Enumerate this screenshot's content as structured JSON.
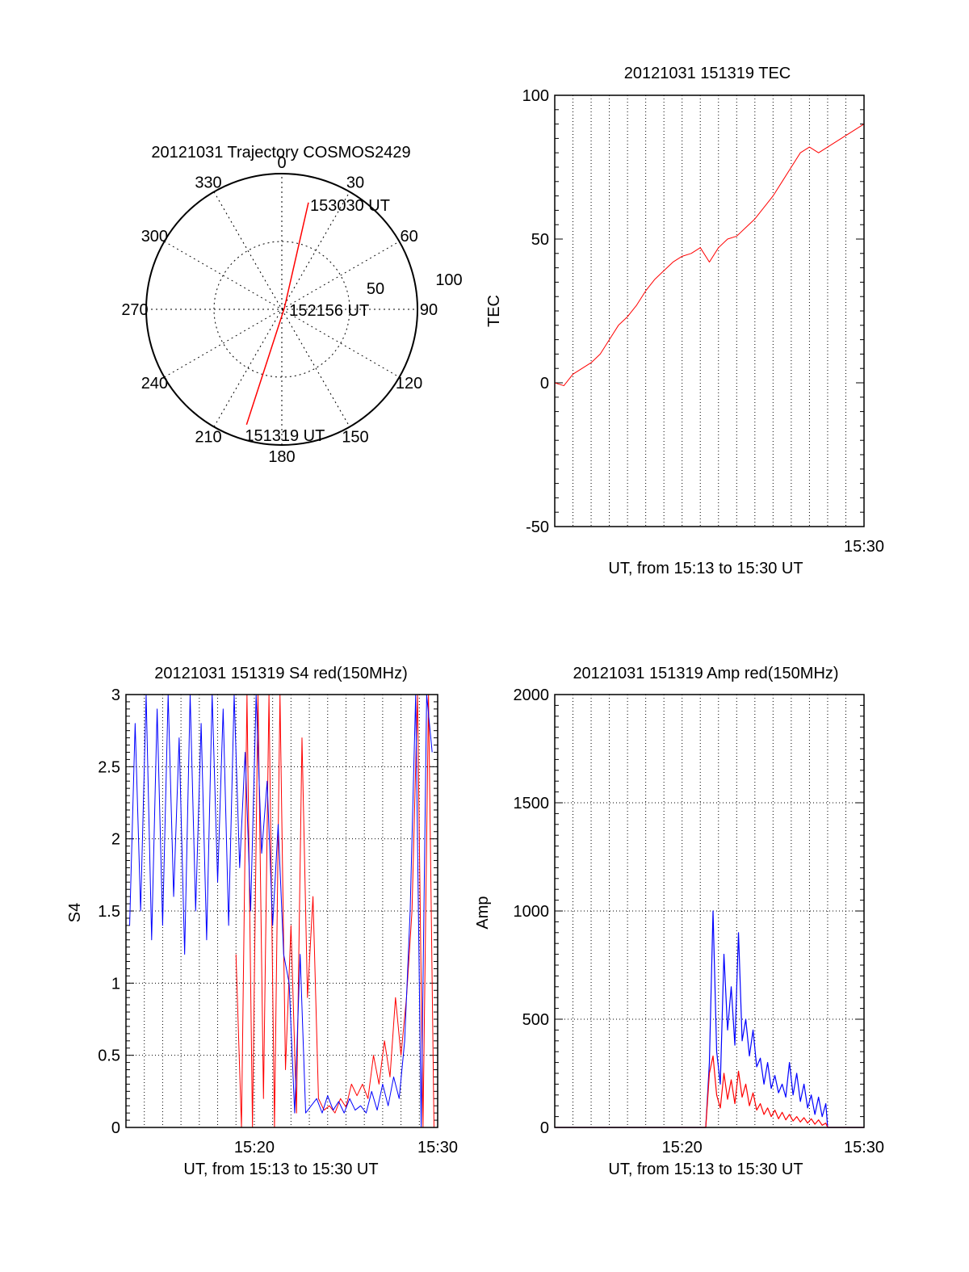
{
  "chart_data": [
    {
      "type": "polar-trajectory",
      "title": "20121031 Trajectory COSMOS2429",
      "azimuth_labels": [
        "0",
        "30",
        "60",
        "90",
        "120",
        "150",
        "180",
        "210",
        "240",
        "270",
        "300",
        "330"
      ],
      "radial_labels": [
        "50",
        "100"
      ],
      "track": {
        "color": "#ff0000",
        "points": [
          {
            "az": 197,
            "el": 10
          },
          {
            "az": 60,
            "el": 88
          },
          {
            "az": 14,
            "el": 17
          }
        ]
      },
      "annotations": [
        {
          "text": "153030 UT",
          "az": 14,
          "el": 17
        },
        {
          "text": "152156 UT",
          "az": 60,
          "el": 88
        },
        {
          "text": "151319 UT",
          "az": 197,
          "el": 10
        }
      ]
    },
    {
      "type": "line",
      "title": "20121031 151319 TEC",
      "xlabel": "UT, from 15:13 to 15:30 UT",
      "ylabel": "TEC",
      "xlim": [
        0,
        17
      ],
      "ylim": [
        -50,
        100
      ],
      "ytick_labels": [
        "-50",
        "0",
        "50",
        "100"
      ],
      "xtick_labels": [
        {
          "x": 17,
          "label": "15:30"
        }
      ],
      "grid": "vertical-dotted",
      "series": [
        {
          "color": "#ff0000",
          "x": [
            0,
            0.5,
            1,
            1.5,
            2,
            2.5,
            3,
            3.5,
            4,
            4.5,
            5,
            5.5,
            6,
            6.5,
            7,
            7.5,
            8,
            8.5,
            9,
            9.5,
            10,
            10.5,
            11,
            11.5,
            12,
            12.5,
            13,
            13.5,
            14,
            14.5,
            15,
            15.5,
            16,
            16.5,
            17
          ],
          "values": [
            0,
            -1,
            3,
            5,
            7,
            10,
            15,
            20,
            23,
            27,
            32,
            36,
            39,
            42,
            44,
            45,
            47,
            42,
            47,
            50,
            51,
            54,
            57,
            61,
            65,
            70,
            75,
            80,
            82,
            80,
            82,
            84,
            86,
            88,
            90
          ]
        }
      ]
    },
    {
      "type": "line",
      "title": "20121031 151319 S4 red(150MHz)",
      "xlabel": "UT, from 15:13 to 15:30 UT",
      "ylabel": "S4",
      "xlim": [
        0,
        17
      ],
      "ylim": [
        0,
        3
      ],
      "ytick_labels": [
        "0",
        "0.5",
        "1",
        "1.5",
        "2",
        "2.5",
        "3"
      ],
      "xtick_labels": [
        {
          "x": 7,
          "label": "15:20"
        },
        {
          "x": 17,
          "label": "15:30"
        }
      ],
      "grid": "dotted",
      "series": [
        {
          "color": "#ff0000",
          "x": [
            6.0,
            6.3,
            6.6,
            6.9,
            7.2,
            7.5,
            7.8,
            8.1,
            8.4,
            8.7,
            9.0,
            9.3,
            9.6,
            9.9,
            10.2,
            10.5,
            10.8,
            11.1,
            11.4,
            11.7,
            12.0,
            12.3,
            12.6,
            12.9,
            13.2,
            13.5,
            13.8,
            14.1,
            14.4,
            14.7,
            15.0,
            15.3,
            15.6,
            15.9,
            16.2,
            16.5,
            16.8
          ],
          "values": [
            1.2,
            0.0,
            3.0,
            0.0,
            3.0,
            0.2,
            3.0,
            0.0,
            3.0,
            0.4,
            1.4,
            0.1,
            2.7,
            0.9,
            1.6,
            0.2,
            0.12,
            0.15,
            0.1,
            0.2,
            0.14,
            0.3,
            0.22,
            0.3,
            0.2,
            0.5,
            0.3,
            0.6,
            0.35,
            0.9,
            0.5,
            0.9,
            1.5,
            3.0,
            0.0,
            3.0,
            0.0
          ]
        },
        {
          "color": "#0000ff",
          "x": [
            0.2,
            0.5,
            0.8,
            1.1,
            1.4,
            1.7,
            2.0,
            2.3,
            2.6,
            2.9,
            3.2,
            3.5,
            3.8,
            4.1,
            4.4,
            4.7,
            5.0,
            5.3,
            5.6,
            5.9,
            6.2,
            6.5,
            6.8,
            7.1,
            7.4,
            7.7,
            8.0,
            8.3,
            8.6,
            8.9,
            9.2,
            9.5,
            9.8,
            10.1,
            10.4,
            10.7,
            11.0,
            11.3,
            11.6,
            11.9,
            12.2,
            12.5,
            12.8,
            13.1,
            13.4,
            13.7,
            14.0,
            14.3,
            14.6,
            14.9,
            15.2,
            15.5,
            15.8,
            16.1,
            16.4,
            16.7
          ],
          "values": [
            1.4,
            2.8,
            1.5,
            3.0,
            1.3,
            2.9,
            1.4,
            3.0,
            1.6,
            2.7,
            1.2,
            3.0,
            1.5,
            2.8,
            1.3,
            3.0,
            1.7,
            2.9,
            1.4,
            3.0,
            1.8,
            2.6,
            1.5,
            3.0,
            1.9,
            2.4,
            1.4,
            2.1,
            1.2,
            1.0,
            0.1,
            1.2,
            0.1,
            0.15,
            0.2,
            0.1,
            0.22,
            0.12,
            0.18,
            0.1,
            0.2,
            0.12,
            0.15,
            0.1,
            0.25,
            0.12,
            0.3,
            0.15,
            0.35,
            0.2,
            0.6,
            1.5,
            3.0,
            0.0,
            3.0,
            2.6
          ]
        }
      ]
    },
    {
      "type": "line",
      "title": "20121031 151319 Amp red(150MHz)",
      "xlabel": "UT, from 15:13 to 15:30 UT",
      "ylabel": "Amp",
      "xlim": [
        0,
        17
      ],
      "ylim": [
        0,
        2000
      ],
      "ytick_labels": [
        "0",
        "500",
        "1000",
        "1500",
        "2000"
      ],
      "xtick_labels": [
        {
          "x": 7,
          "label": "15:20"
        },
        {
          "x": 17,
          "label": "15:30"
        }
      ],
      "grid": "dotted",
      "series": [
        {
          "color": "#0000ff",
          "x": [
            0,
            8.3,
            8.5,
            8.7,
            8.9,
            9.1,
            9.3,
            9.5,
            9.7,
            9.9,
            10.1,
            10.3,
            10.5,
            10.7,
            10.9,
            11.1,
            11.3,
            11.5,
            11.7,
            11.9,
            12.1,
            12.3,
            12.5,
            12.7,
            12.9,
            13.1,
            13.3,
            13.5,
            13.7,
            13.9,
            14.1,
            14.3,
            14.5,
            14.7,
            14.9,
            15.0,
            17
          ],
          "values": [
            0,
            0,
            300,
            1000,
            350,
            200,
            800,
            450,
            650,
            380,
            900,
            400,
            500,
            330,
            450,
            280,
            320,
            200,
            300,
            180,
            240,
            160,
            200,
            140,
            300,
            150,
            250,
            120,
            200,
            90,
            150,
            60,
            140,
            50,
            110,
            0,
            0
          ]
        },
        {
          "color": "#ff0000",
          "x": [
            0,
            8.3,
            8.5,
            8.7,
            8.9,
            9.1,
            9.3,
            9.5,
            9.7,
            9.9,
            10.1,
            10.3,
            10.5,
            10.7,
            10.9,
            11.1,
            11.3,
            11.5,
            11.7,
            11.9,
            12.1,
            12.3,
            12.5,
            12.7,
            12.9,
            13.1,
            13.3,
            13.5,
            13.7,
            13.9,
            14.1,
            14.3,
            14.5,
            14.7,
            14.9,
            15.0,
            17
          ],
          "values": [
            0,
            0,
            250,
            330,
            150,
            90,
            250,
            130,
            220,
            110,
            260,
            140,
            200,
            100,
            160,
            80,
            110,
            60,
            90,
            50,
            80,
            40,
            70,
            35,
            60,
            30,
            50,
            25,
            45,
            20,
            40,
            15,
            35,
            10,
            20,
            0,
            0
          ]
        }
      ]
    }
  ]
}
